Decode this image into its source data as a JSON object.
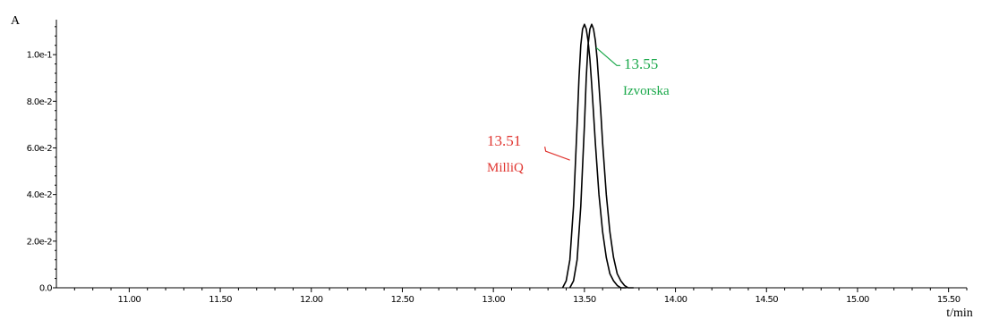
{
  "chart_data": {
    "type": "line",
    "ylabel": "A",
    "xlabel": "t/min",
    "xlim": [
      10.6,
      15.6
    ],
    "ylim": [
      0.0,
      0.115
    ],
    "grid": false,
    "x_ticks": [
      11.0,
      11.5,
      12.0,
      12.5,
      13.0,
      13.5,
      14.0,
      14.5,
      15.0,
      15.5
    ],
    "x_tick_labels": [
      "11.00",
      "11.50",
      "12.00",
      "12.50",
      "13.00",
      "13.50",
      "14.00",
      "14.50",
      "15.00",
      "15.50"
    ],
    "y_ticks": [
      0.0,
      0.02,
      0.04,
      0.06,
      0.08,
      0.1
    ],
    "y_tick_labels": [
      "0.0",
      "2.0e-2",
      "4.0e-2",
      "6.0e-2",
      "8.0e-2",
      "1.0e-1"
    ],
    "series": [
      {
        "color": "#000000",
        "x": [
          13.38,
          13.4,
          13.42,
          13.44,
          13.46,
          13.47,
          13.48,
          13.49,
          13.5,
          13.51,
          13.52,
          13.53,
          13.54,
          13.55,
          13.56,
          13.58,
          13.6,
          13.62,
          13.64,
          13.66,
          13.68,
          13.7,
          13.73
        ],
        "y": [
          0.0,
          0.003,
          0.012,
          0.035,
          0.07,
          0.09,
          0.104,
          0.111,
          0.113,
          0.111,
          0.106,
          0.098,
          0.087,
          0.075,
          0.062,
          0.04,
          0.024,
          0.013,
          0.006,
          0.003,
          0.001,
          0.0,
          0.0
        ]
      },
      {
        "color": "#000000",
        "x": [
          13.42,
          13.44,
          13.46,
          13.48,
          13.5,
          13.51,
          13.52,
          13.53,
          13.54,
          13.55,
          13.56,
          13.57,
          13.58,
          13.59,
          13.6,
          13.62,
          13.64,
          13.66,
          13.68,
          13.7,
          13.72,
          13.74,
          13.77
        ],
        "y": [
          0.0,
          0.003,
          0.012,
          0.035,
          0.07,
          0.09,
          0.104,
          0.111,
          0.113,
          0.111,
          0.106,
          0.098,
          0.087,
          0.075,
          0.062,
          0.04,
          0.024,
          0.013,
          0.006,
          0.003,
          0.001,
          0.0,
          0.0
        ]
      }
    ],
    "annotations": [
      {
        "time": "13.55",
        "name": "Izvorska",
        "color": "#1aa84a",
        "x": 13.55,
        "y": 0.103
      },
      {
        "time": "13.51",
        "name": "MilliQ",
        "color": "#e0342f",
        "x": 13.43,
        "y": 0.054
      }
    ]
  }
}
